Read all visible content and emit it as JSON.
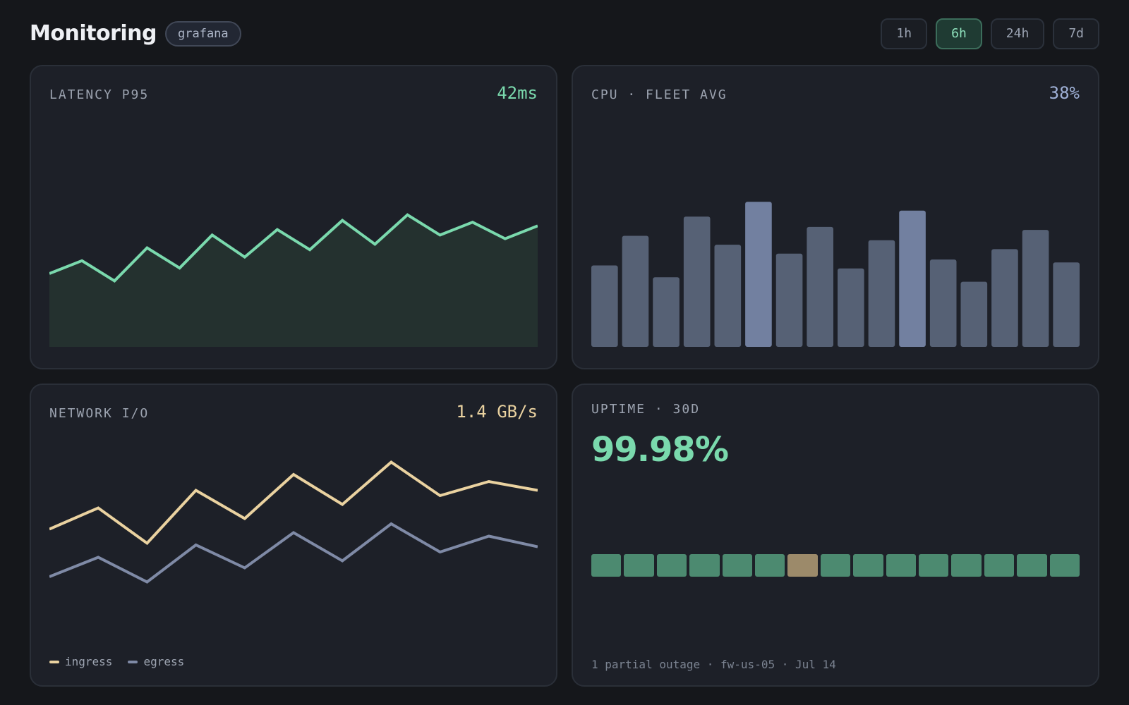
{
  "header": {
    "title": "Monitoring",
    "badge": "grafana",
    "ranges": [
      "1h",
      "6h",
      "24h",
      "7d"
    ],
    "active_range": "6h"
  },
  "colors": {
    "accent_green": "#7ad9ad",
    "accent_blue": "#9fb0d6",
    "accent_amber": "#ead2a0",
    "panel_bg": "#1d2028",
    "page_bg": "#15171b"
  },
  "panels": {
    "latency": {
      "title": "LATENCY P95",
      "value": "42ms"
    },
    "cpu": {
      "title": "CPU · FLEET AVG",
      "value": "38%"
    },
    "network": {
      "title": "NETWORK I/O",
      "value": "1.4 GB/s",
      "legend": [
        "ingress",
        "egress"
      ]
    },
    "uptime": {
      "title": "UPTIME · 30D",
      "value": "99.98%",
      "note": "1 partial outage · fw-us-05 · Jul 14",
      "days": [
        "ok",
        "ok",
        "ok",
        "ok",
        "ok",
        "ok",
        "partial",
        "ok",
        "ok",
        "ok",
        "ok",
        "ok",
        "ok",
        "ok",
        "ok"
      ]
    }
  },
  "chart_data": [
    {
      "type": "area",
      "x": [
        1,
        2,
        3,
        4,
        5,
        6,
        7,
        8,
        9,
        10,
        11,
        12,
        13,
        14,
        15,
        16
      ],
      "series": [
        {
          "values": [
            0.4,
            0.47,
            0.36,
            0.54,
            0.43,
            0.61,
            0.49,
            0.64,
            0.53,
            0.69,
            0.56,
            0.72,
            0.61,
            0.68,
            0.59,
            0.66
          ]
        }
      ],
      "ylim": [
        0,
        1
      ]
    },
    {
      "type": "bar",
      "x": [
        1,
        2,
        3,
        4,
        5,
        6,
        7,
        8,
        9,
        10,
        11,
        12,
        13,
        14,
        15,
        16
      ],
      "series": [
        {
          "values": [
            0.55,
            0.75,
            0.47,
            0.88,
            0.69,
            0.98,
            0.63,
            0.81,
            0.53,
            0.72,
            0.92,
            0.59,
            0.44,
            0.66,
            0.79,
            0.57
          ]
        }
      ],
      "highlight": [
        6,
        11
      ],
      "ylim": [
        0,
        1
      ]
    },
    {
      "type": "line",
      "x": [
        1,
        2,
        3,
        4,
        5,
        6,
        7,
        8,
        9,
        10,
        11
      ],
      "series": [
        {
          "name": "ingress",
          "values": [
            0.55,
            0.67,
            0.47,
            0.77,
            0.61,
            0.86,
            0.69,
            0.93,
            0.74,
            0.82,
            0.77
          ]
        },
        {
          "name": "egress",
          "values": [
            0.28,
            0.39,
            0.25,
            0.46,
            0.33,
            0.53,
            0.37,
            0.58,
            0.42,
            0.51,
            0.45
          ]
        }
      ],
      "ylim": [
        0,
        1
      ]
    }
  ]
}
